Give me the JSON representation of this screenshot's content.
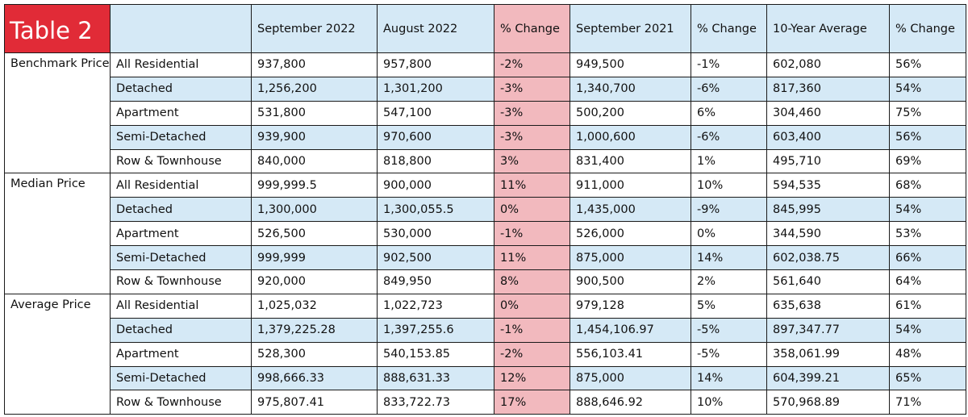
{
  "table": {
    "title": "Table 2",
    "headers": [
      "September 2022",
      "August 2022",
      "% Change",
      "September 2021",
      "% Change",
      "10-Year Average",
      "% Change"
    ],
    "groups": [
      {
        "label": "Benchmark Price",
        "rows": [
          {
            "type": "All Residential",
            "values": [
              "937,800",
              "957,800",
              "-2%",
              "949,500",
              "-1%",
              "602,080",
              "56%"
            ]
          },
          {
            "type": "Detached",
            "values": [
              "1,256,200",
              "1,301,200",
              "-3%",
              "1,340,700",
              "-6%",
              "817,360",
              "54%"
            ]
          },
          {
            "type": "Apartment",
            "values": [
              "531,800",
              "547,100",
              "-3%",
              "500,200",
              "6%",
              "304,460",
              "75%"
            ]
          },
          {
            "type": "Semi-Detached",
            "values": [
              "939,900",
              "970,600",
              "-3%",
              "1,000,600",
              "-6%",
              "603,400",
              "56%"
            ]
          },
          {
            "type": "Row & Townhouse",
            "values": [
              "840,000",
              "818,800",
              "3%",
              "831,400",
              "1%",
              "495,710",
              "69%"
            ]
          }
        ]
      },
      {
        "label": "Median Price",
        "rows": [
          {
            "type": "All Residential",
            "values": [
              "999,999.5",
              "900,000",
              "11%",
              "911,000",
              "10%",
              "594,535",
              "68%"
            ]
          },
          {
            "type": "Detached",
            "values": [
              "1,300,000",
              "1,300,055.5",
              "0%",
              "1,435,000",
              "-9%",
              "845,995",
              "54%"
            ]
          },
          {
            "type": "Apartment",
            "values": [
              "526,500",
              "530,000",
              "-1%",
              "526,000",
              "0%",
              "344,590",
              "53%"
            ]
          },
          {
            "type": "Semi-Detached",
            "values": [
              "999,999",
              "902,500",
              "11%",
              "875,000",
              "14%",
              "602,038.75",
              "66%"
            ]
          },
          {
            "type": "Row & Townhouse",
            "values": [
              "920,000",
              "849,950",
              "8%",
              "900,500",
              "2%",
              "561,640",
              "64%"
            ]
          }
        ]
      },
      {
        "label": "Average Price",
        "rows": [
          {
            "type": "All Residential",
            "values": [
              "1,025,032",
              "1,022,723",
              "0%",
              "979,128",
              "5%",
              "635,638",
              "61%"
            ]
          },
          {
            "type": "Detached",
            "values": [
              "1,379,225.28",
              "1,397,255.6",
              "-1%",
              "1,454,106.97",
              "-5%",
              "897,347.77",
              "54%"
            ]
          },
          {
            "type": "Apartment",
            "values": [
              "528,300",
              "540,153.85",
              "-2%",
              "556,103.41",
              "-5%",
              "358,061.99",
              "48%"
            ]
          },
          {
            "type": "Semi-Detached",
            "values": [
              "998,666.33",
              "888,631.33",
              "12%",
              "875,000",
              "14%",
              "604,399.21",
              "65%"
            ]
          },
          {
            "type": "Row & Townhouse",
            "values": [
              "975,807.41",
              "833,722.73",
              "17%",
              "888,646.92",
              "10%",
              "570,968.89",
              "71%"
            ]
          }
        ]
      }
    ]
  },
  "colors": {
    "title_bg": "#e12b37",
    "title_text": "#ffffff",
    "header_bg": "#d5e9f6",
    "row_shade": "#d5e9f6",
    "highlight_col": "#f2b9be",
    "border": "#1a1a1a"
  }
}
